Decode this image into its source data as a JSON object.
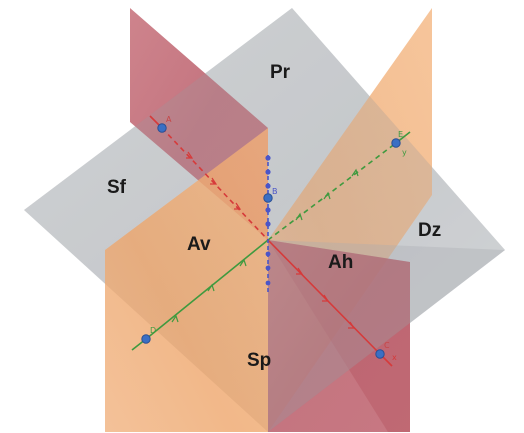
{
  "regions": {
    "pr": "Pr",
    "sf": "Sf",
    "dz": "Dz",
    "av": "Av",
    "ah": "Ah",
    "sp": "Sp"
  },
  "points": {
    "a": "A",
    "b": "B",
    "c": "C",
    "d": "D",
    "e": "E"
  },
  "axes": {
    "x": "x",
    "y": "y"
  },
  "colors": {
    "plane_red": "#b8525f",
    "plane_orange": "#f0a868",
    "plane_gray": "#a8acb1",
    "axis_red": "#d63a3a",
    "axis_green": "#3f9a3f",
    "axis_blue": "#4a55c8",
    "point_blue": "#3a6fc4"
  }
}
